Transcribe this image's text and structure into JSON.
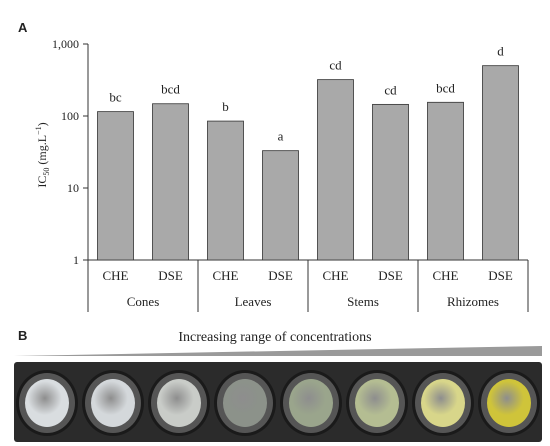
{
  "panel_a_letter": "A",
  "panel_b_letter": "B",
  "gradient_label": "Increasing range of concentrations",
  "colors": {
    "bar_fill": "#a9a9a9",
    "bar_stroke": "#333333",
    "axis": "#333333",
    "gradient": "#9a9a9a"
  },
  "chart_data": {
    "type": "bar",
    "title": "",
    "ylabel_main": "IC",
    "ylabel_sub": "50",
    "ylabel_units": " (mg.L",
    "ylabel_sup": "−1",
    "ylabel_close": ")",
    "yscale": "log",
    "ylim": [
      1,
      1000
    ],
    "yticks": [
      1,
      10,
      100,
      1000
    ],
    "ytick_labels": [
      "1",
      "10",
      "100",
      "1,000"
    ],
    "grid": false,
    "groups": [
      "Cones",
      "Leaves",
      "Stems",
      "Rhizomes"
    ],
    "categories": [
      "CHE",
      "DSE",
      "CHE",
      "DSE",
      "CHE",
      "DSE",
      "CHE",
      "DSE"
    ],
    "values": [
      115,
      148,
      85,
      33,
      320,
      145,
      155,
      500
    ],
    "significance": [
      "bc",
      "bcd",
      "b",
      "a",
      "cd",
      "cd",
      "bcd",
      "d"
    ]
  },
  "wells": [
    {
      "color": "#d9dde0"
    },
    {
      "color": "#d4d8db"
    },
    {
      "color": "#c9ccc8"
    },
    {
      "color": "#8c928a"
    },
    {
      "color": "#9aa58c"
    },
    {
      "color": "#b4bd92"
    },
    {
      "color": "#d8d68a"
    },
    {
      "color": "#cfc43a"
    }
  ]
}
